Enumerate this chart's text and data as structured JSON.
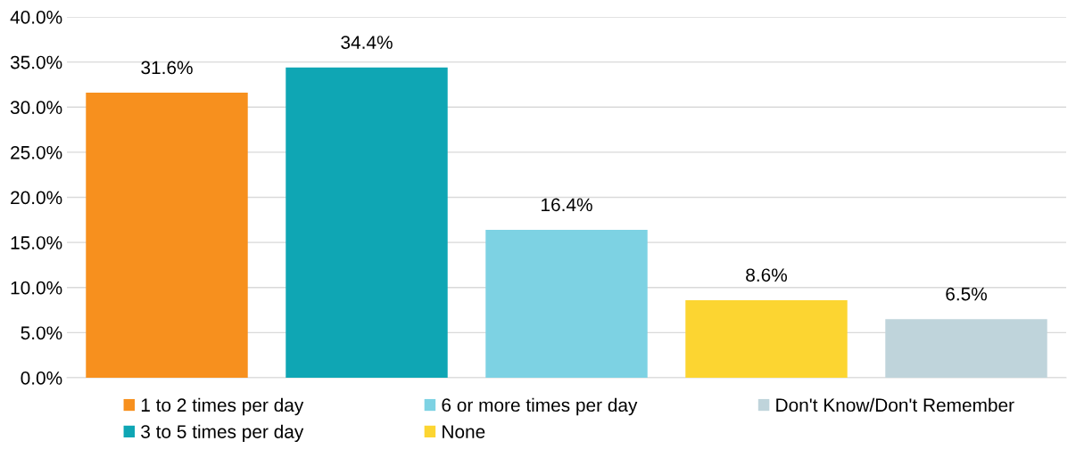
{
  "chart_data": {
    "type": "bar",
    "categories": [
      null,
      null,
      null,
      null,
      null
    ],
    "series": [
      {
        "name": "1 to 2 times per day",
        "color": "#f7901e",
        "values": [
          31.6,
          null,
          null,
          null,
          null
        ],
        "value_labels": [
          "31.6%",
          null,
          null,
          null,
          null
        ]
      },
      {
        "name": "3 to 5 times per day",
        "color": "#0fa6b4",
        "values": [
          null,
          34.4,
          null,
          null,
          null
        ],
        "value_labels": [
          null,
          "34.4%",
          null,
          null,
          null
        ]
      },
      {
        "name": "6 or more times per day",
        "color": "#7dd2e3",
        "values": [
          null,
          null,
          16.4,
          null,
          null
        ],
        "value_labels": [
          null,
          null,
          "16.4%",
          null,
          null
        ]
      },
      {
        "name": "None",
        "color": "#fcd531",
        "values": [
          null,
          null,
          null,
          8.6,
          null
        ],
        "value_labels": [
          null,
          null,
          null,
          "8.6%",
          null
        ]
      },
      {
        "name": "Don't Know/Don't Remember",
        "color": "#bfd4db",
        "values": [
          null,
          null,
          null,
          null,
          6.5
        ],
        "value_labels": [
          null,
          null,
          null,
          null,
          "6.5%"
        ]
      }
    ],
    "ylim": [
      0,
      40
    ],
    "yticks": [
      {
        "value": 0,
        "label": "0.0%"
      },
      {
        "value": 5,
        "label": "5.0%"
      },
      {
        "value": 10,
        "label": "10.0%"
      },
      {
        "value": 15,
        "label": "15.0%"
      },
      {
        "value": 20,
        "label": "20.0%"
      },
      {
        "value": 25,
        "label": "25.0%"
      },
      {
        "value": 30,
        "label": "30.0%"
      },
      {
        "value": 35,
        "label": "35.0%"
      },
      {
        "value": 40,
        "label": "40.0%"
      }
    ],
    "grid": "y",
    "legend": "bottom"
  }
}
